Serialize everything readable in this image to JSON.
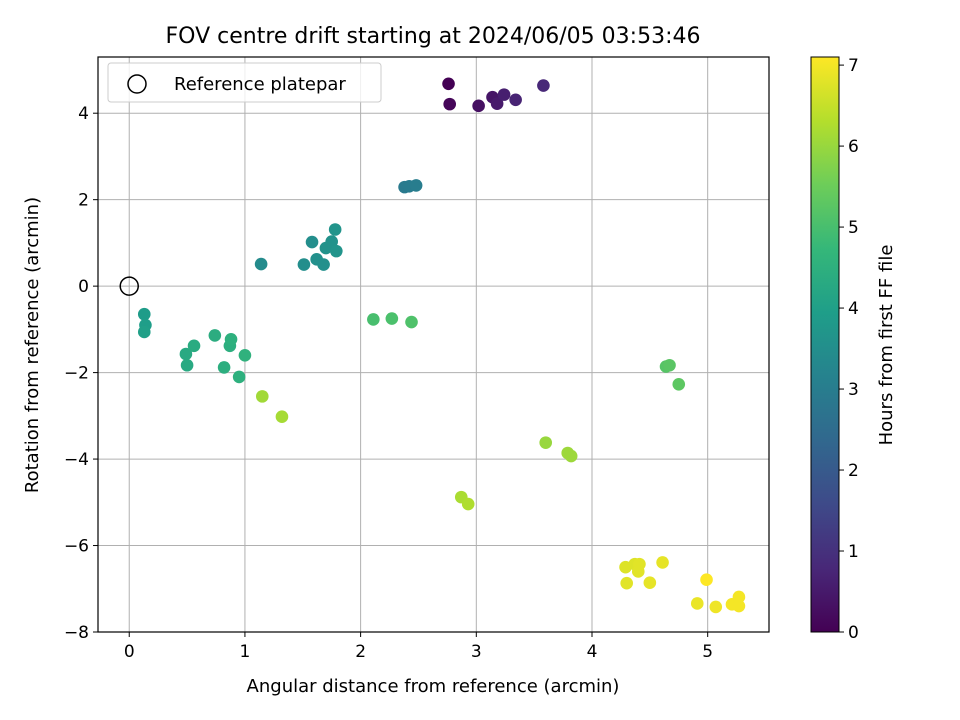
{
  "chart_data": {
    "type": "scatter",
    "title": "FOV centre drift starting at 2024/06/05 03:53:46",
    "xlabel": "Angular distance from reference (arcmin)",
    "ylabel": "Rotation from reference (arcmin)",
    "xlim": [
      -0.27,
      5.53
    ],
    "ylim": [
      -8.0,
      5.3
    ],
    "x_ticks": [
      0,
      1,
      2,
      3,
      4,
      5
    ],
    "y_ticks": [
      -8,
      -6,
      -4,
      -2,
      0,
      2,
      4
    ],
    "grid": true,
    "legend": {
      "placement": "top-left",
      "entries": [
        "Reference platepar"
      ]
    },
    "reference_point": {
      "x": 0,
      "y": 0,
      "label": "Reference platepar"
    },
    "colorbar": {
      "label": "Hours from first FF file",
      "range": [
        0,
        7.1
      ],
      "ticks": [
        0,
        1,
        2,
        3,
        4,
        5,
        6,
        7
      ],
      "colormap": "viridis"
    },
    "points": [
      {
        "x": 2.76,
        "y": 4.68,
        "h": 0.0
      },
      {
        "x": 2.77,
        "y": 4.21,
        "h": 0.1
      },
      {
        "x": 3.02,
        "y": 4.17,
        "h": 0.3
      },
      {
        "x": 3.14,
        "y": 4.37,
        "h": 0.4
      },
      {
        "x": 3.18,
        "y": 4.22,
        "h": 0.5
      },
      {
        "x": 3.24,
        "y": 4.43,
        "h": 0.6
      },
      {
        "x": 3.34,
        "y": 4.31,
        "h": 0.7
      },
      {
        "x": 3.58,
        "y": 4.64,
        "h": 0.8
      },
      {
        "x": 2.38,
        "y": 2.29,
        "h": 2.9
      },
      {
        "x": 2.42,
        "y": 2.31,
        "h": 2.95
      },
      {
        "x": 2.48,
        "y": 2.33,
        "h": 3.0
      },
      {
        "x": 1.14,
        "y": 0.51,
        "h": 3.4
      },
      {
        "x": 1.51,
        "y": 0.5,
        "h": 3.5
      },
      {
        "x": 1.58,
        "y": 1.02,
        "h": 3.5
      },
      {
        "x": 1.62,
        "y": 0.62,
        "h": 3.55
      },
      {
        "x": 1.68,
        "y": 0.5,
        "h": 3.55
      },
      {
        "x": 1.7,
        "y": 0.88,
        "h": 3.6
      },
      {
        "x": 1.75,
        "y": 1.03,
        "h": 3.6
      },
      {
        "x": 1.78,
        "y": 1.31,
        "h": 3.65
      },
      {
        "x": 1.79,
        "y": 0.81,
        "h": 3.65
      },
      {
        "x": 0.13,
        "y": -0.65,
        "h": 3.9
      },
      {
        "x": 0.14,
        "y": -0.9,
        "h": 3.95
      },
      {
        "x": 0.13,
        "y": -1.06,
        "h": 4.0
      },
      {
        "x": 0.49,
        "y": -1.57,
        "h": 4.3
      },
      {
        "x": 0.5,
        "y": -1.83,
        "h": 4.3
      },
      {
        "x": 0.56,
        "y": -1.38,
        "h": 4.35
      },
      {
        "x": 0.74,
        "y": -1.14,
        "h": 4.4
      },
      {
        "x": 0.82,
        "y": -1.88,
        "h": 4.45
      },
      {
        "x": 0.87,
        "y": -1.38,
        "h": 4.45
      },
      {
        "x": 0.88,
        "y": -1.23,
        "h": 4.5
      },
      {
        "x": 0.95,
        "y": -2.1,
        "h": 4.5
      },
      {
        "x": 1.0,
        "y": -1.6,
        "h": 4.55
      },
      {
        "x": 2.11,
        "y": -0.77,
        "h": 5.0
      },
      {
        "x": 2.27,
        "y": -0.75,
        "h": 5.05
      },
      {
        "x": 2.44,
        "y": -0.83,
        "h": 5.1
      },
      {
        "x": 4.64,
        "y": -1.86,
        "h": 5.2
      },
      {
        "x": 4.67,
        "y": -1.83,
        "h": 5.25
      },
      {
        "x": 4.75,
        "y": -2.27,
        "h": 5.3
      },
      {
        "x": 1.15,
        "y": -2.55,
        "h": 6.1
      },
      {
        "x": 1.32,
        "y": -3.02,
        "h": 6.15
      },
      {
        "x": 3.6,
        "y": -3.62,
        "h": 6.0
      },
      {
        "x": 3.79,
        "y": -3.86,
        "h": 6.05
      },
      {
        "x": 3.82,
        "y": -3.93,
        "h": 6.05
      },
      {
        "x": 2.87,
        "y": -4.88,
        "h": 6.2
      },
      {
        "x": 2.93,
        "y": -5.04,
        "h": 6.25
      },
      {
        "x": 4.29,
        "y": -6.5,
        "h": 6.75
      },
      {
        "x": 4.37,
        "y": -6.43,
        "h": 6.75
      },
      {
        "x": 4.41,
        "y": -6.43,
        "h": 6.8
      },
      {
        "x": 4.4,
        "y": -6.6,
        "h": 6.8
      },
      {
        "x": 4.3,
        "y": -6.87,
        "h": 6.8
      },
      {
        "x": 4.5,
        "y": -6.86,
        "h": 6.85
      },
      {
        "x": 4.61,
        "y": -6.39,
        "h": 6.85
      },
      {
        "x": 4.91,
        "y": -7.34,
        "h": 6.9
      },
      {
        "x": 4.99,
        "y": -6.79,
        "h": 7.1
      },
      {
        "x": 5.07,
        "y": -7.42,
        "h": 6.95
      },
      {
        "x": 5.21,
        "y": -7.36,
        "h": 7.0
      },
      {
        "x": 5.27,
        "y": -7.19,
        "h": 7.0
      },
      {
        "x": 5.27,
        "y": -7.4,
        "h": 7.0
      }
    ]
  }
}
